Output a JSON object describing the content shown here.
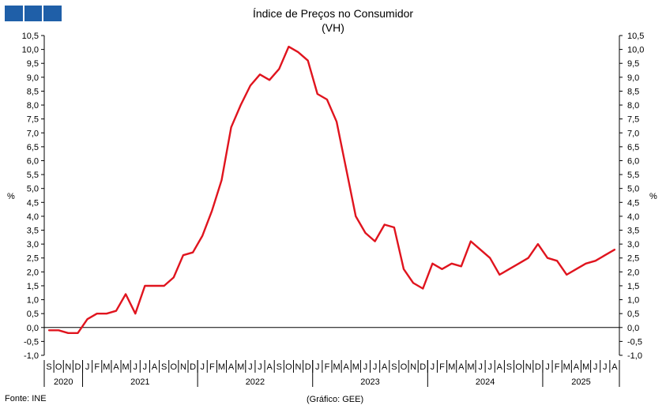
{
  "header": {
    "logo_icon": "ine-logo-icon",
    "logo_color": "#1f5fa8",
    "title": "Índice de Preços no Consumidor",
    "subtitle": "(VH)"
  },
  "footer": {
    "source": "Fonte: INE",
    "credit": "(Gráfico: GEE)"
  },
  "chart_data": {
    "type": "line",
    "title": "Índice de Preços no Consumidor",
    "subtitle": "(VH)",
    "ylabel_left": "%",
    "ylabel_right": "%",
    "ylim": [
      -1.0,
      10.5
    ],
    "yticks": [
      "10,5",
      "10,0",
      "9,5",
      "9,0",
      "8,5",
      "8,0",
      "7,5",
      "7,0",
      "6,5",
      "6,0",
      "5,5",
      "5,0",
      "4,5",
      "4,0",
      "3,5",
      "3,0",
      "2,5",
      "2,0",
      "1,5",
      "1,0",
      "0,5",
      "0,0",
      "-0,5",
      "-1,0"
    ],
    "grid": false,
    "line_color": "#e0141e",
    "x_month_labels": [
      "S",
      "O",
      "N",
      "D",
      "J",
      "F",
      "M",
      "A",
      "M",
      "J",
      "J",
      "A",
      "S",
      "O",
      "N",
      "D",
      "J",
      "F",
      "M",
      "A",
      "M",
      "J",
      "J",
      "A",
      "S",
      "O",
      "N",
      "D",
      "J",
      "F",
      "M",
      "A",
      "M",
      "J",
      "J",
      "A",
      "S",
      "O",
      "N",
      "D",
      "J",
      "F",
      "M",
      "A",
      "M",
      "J",
      "J",
      "A",
      "S",
      "O",
      "N",
      "D",
      "J",
      "F",
      "M",
      "A",
      "M",
      "J",
      "J",
      "A"
    ],
    "x_year_groups": [
      {
        "label": "2020",
        "months": 4
      },
      {
        "label": "2021",
        "months": 12
      },
      {
        "label": "2022",
        "months": 12
      },
      {
        "label": "2023",
        "months": 12
      },
      {
        "label": "2024",
        "months": 12
      },
      {
        "label": "2025",
        "months": 8
      }
    ],
    "series": [
      {
        "values": [
          -0.1,
          -0.1,
          -0.2,
          -0.2,
          0.3,
          0.5,
          0.5,
          0.6,
          1.2,
          0.5,
          1.5,
          1.5,
          1.5,
          1.8,
          2.6,
          2.7,
          3.3,
          4.2,
          5.3,
          7.2,
          8.0,
          8.7,
          9.1,
          8.9,
          9.3,
          10.1,
          9.9,
          9.6,
          8.4,
          8.2,
          7.4,
          5.7,
          4.0,
          3.4,
          3.1,
          3.7,
          3.6,
          2.1,
          1.6,
          1.4,
          2.3,
          2.1,
          2.3,
          2.2,
          3.1,
          2.8,
          2.5,
          1.9,
          2.1,
          2.3,
          2.5,
          3.0,
          2.5,
          2.4,
          1.9,
          2.1,
          2.3,
          2.4,
          2.6,
          2.8
        ]
      }
    ]
  }
}
